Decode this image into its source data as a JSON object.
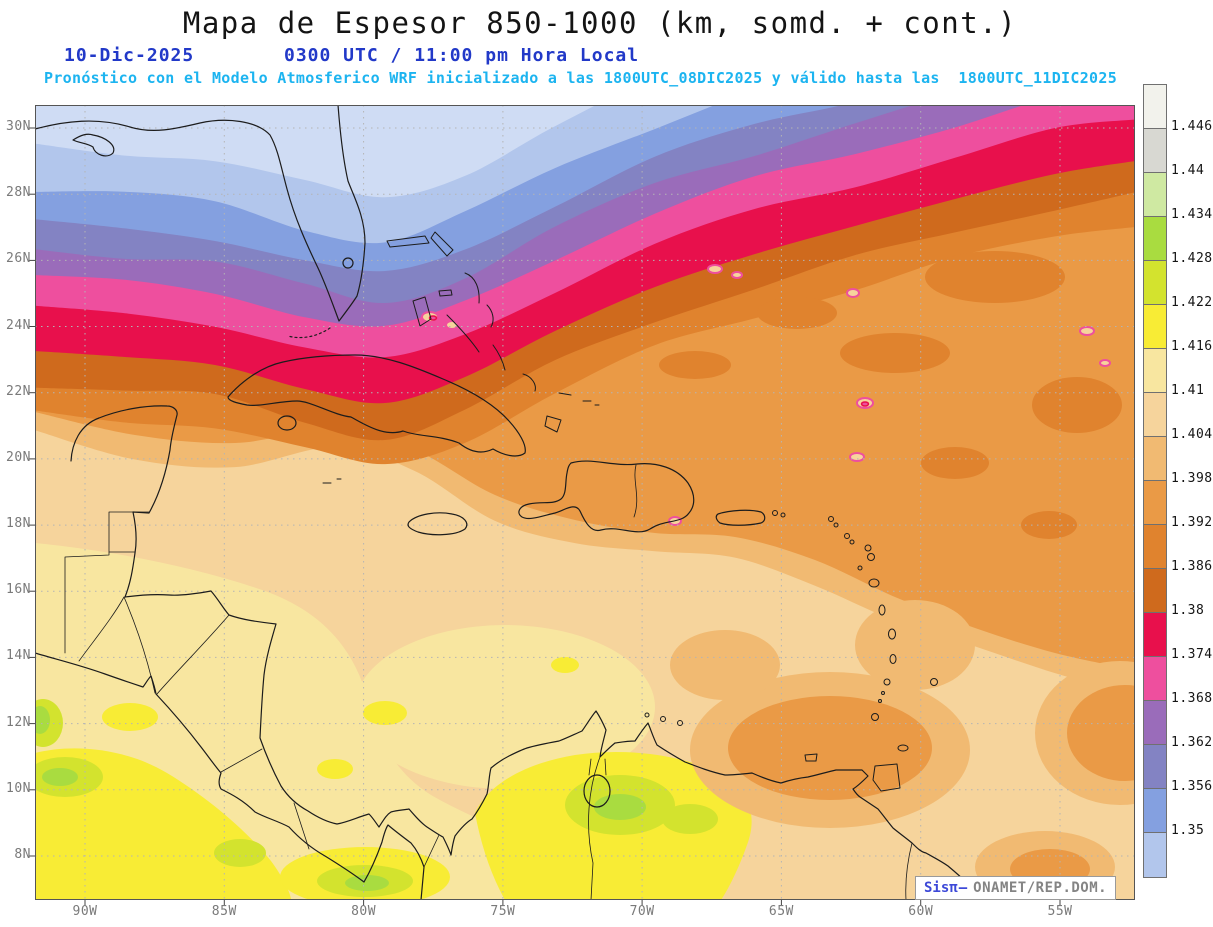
{
  "header": {
    "title": "Mapa de Espesor 850-1000 (km, somd. + cont.)",
    "date": "10-Dic-2025",
    "time": "0300 UTC / 11:00 pm Hora Local",
    "forecast": "Pronóstico con el Modelo Atmosferico WRF inicializado a las 1800UTC_08DIC2025 y válido hasta las  1800UTC_11DIC2025"
  },
  "map": {
    "lat_ticks": [
      "30N",
      "28N",
      "26N",
      "24N",
      "22N",
      "20N",
      "18N",
      "16N",
      "14N",
      "12N",
      "10N",
      "8N"
    ],
    "lon_ticks": [
      "90W",
      "85W",
      "80W",
      "75W",
      "70W",
      "65W",
      "60W",
      "55W"
    ],
    "pale_corner_color": "#cfdcf4"
  },
  "legend": {
    "values": [
      "1.446",
      "1.44",
      "1.434",
      "1.428",
      "1.422",
      "1.416",
      "1.41",
      "1.404",
      "1.398",
      "1.392",
      "1.386",
      "1.38",
      "1.374",
      "1.368",
      "1.362",
      "1.356",
      "1.35"
    ],
    "colors": [
      "#f2f2ec",
      "#d8d8d2",
      "#cfe9a2",
      "#a9dc40",
      "#d3e32e",
      "#f8ec35",
      "#f8e6a0",
      "#f6d49c",
      "#f1ba72",
      "#ea9a46",
      "#e0832e",
      "#cf6a1d",
      "#e8104c",
      "#ee4f9e",
      "#9a6cba",
      "#8383c3",
      "#84a0e0",
      "#b2c6ec"
    ]
  },
  "watermark": {
    "brand": "Sisπ",
    "separator": "—",
    "org": "ONAMET/REP.DOM."
  }
}
